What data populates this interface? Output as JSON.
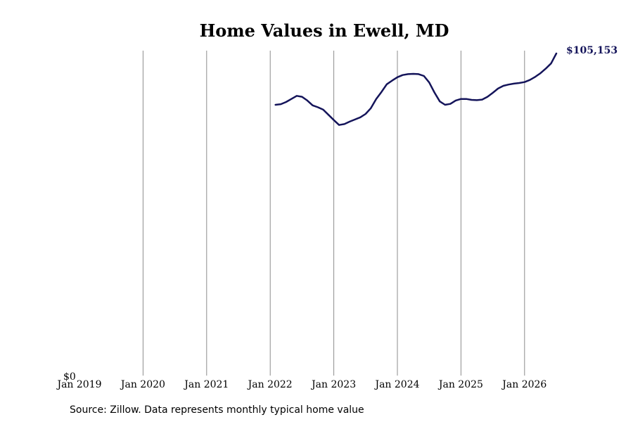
{
  "chart_data": {
    "type": "line",
    "title": "Home Values in Ewell, MD",
    "xlabel": "",
    "ylabel": "",
    "x_ticks": [
      "Jan 2019",
      "Jan 2020",
      "Jan 2021",
      "Jan 2022",
      "Jan 2023",
      "Jan 2024",
      "Jan 2025",
      "Jan 2026"
    ],
    "y_ticks": [
      "$0"
    ],
    "ylim": [
      0,
      105153
    ],
    "grid": "vertical",
    "series": [
      {
        "color": "#14145a",
        "x": [
          "2022-02",
          "2022-03",
          "2022-04",
          "2022-05",
          "2022-06",
          "2022-07",
          "2022-08",
          "2022-09",
          "2022-10",
          "2022-11",
          "2022-12",
          "2023-01",
          "2023-02",
          "2023-03",
          "2023-04",
          "2023-05",
          "2023-06",
          "2023-07",
          "2023-08",
          "2023-09",
          "2023-10",
          "2023-11",
          "2023-12",
          "2024-01",
          "2024-02",
          "2024-03",
          "2024-04",
          "2024-05",
          "2024-06",
          "2024-07",
          "2024-08",
          "2024-09",
          "2024-10",
          "2024-11",
          "2024-12",
          "2025-01",
          "2025-02",
          "2025-03",
          "2025-04",
          "2025-05",
          "2025-06",
          "2025-07",
          "2025-08",
          "2025-09",
          "2025-10",
          "2025-11",
          "2025-12",
          "2026-01",
          "2026-02",
          "2026-03",
          "2026-04",
          "2026-05",
          "2026-06",
          "2026-07"
        ],
        "y": [
          88400,
          88600,
          89300,
          90300,
          91300,
          91000,
          89800,
          88200,
          87600,
          86800,
          85100,
          83400,
          81800,
          82100,
          82900,
          83600,
          84300,
          85400,
          87300,
          90300,
          92600,
          95100,
          96300,
          97400,
          98100,
          98400,
          98500,
          98400,
          97800,
          95700,
          92400,
          89500,
          88400,
          88700,
          89800,
          90300,
          90300,
          90000,
          89900,
          90100,
          91000,
          92300,
          93700,
          94600,
          95000,
          95300,
          95500,
          95800,
          96500,
          97500,
          98700,
          100200,
          101900,
          105153
        ]
      }
    ],
    "end_label": "$105,153"
  },
  "footer": {
    "source": "Source: Zillow. Data represents monthly typical home value"
  }
}
